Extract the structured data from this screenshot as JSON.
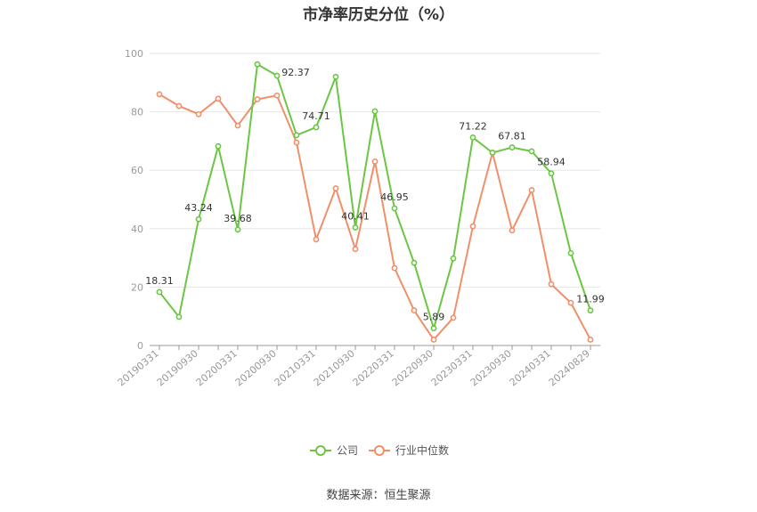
{
  "chart_data": {
    "type": "line",
    "title": "市净率历史分位（%）",
    "source": "数据来源：恒生聚源",
    "ylim": [
      0,
      100
    ],
    "yticks": [
      0,
      20,
      40,
      60,
      80,
      100
    ],
    "x": [
      "20190331",
      "20190630",
      "20190930",
      "20191231",
      "20200331",
      "20200630",
      "20200930",
      "20201231",
      "20210331",
      "20210630",
      "20210930",
      "20211231",
      "20220331",
      "20220630",
      "20220930",
      "20221231",
      "20230331",
      "20230630",
      "20230930",
      "20231231",
      "20240331",
      "20240630",
      "20240829"
    ],
    "x_tick_labels": [
      "20190331",
      "20190930",
      "20200331",
      "20200930",
      "20210331",
      "20210930",
      "20220331",
      "20220930",
      "20230331",
      "20230930",
      "20240331",
      "20240829"
    ],
    "grid": true,
    "legend_position": "bottom",
    "series": [
      {
        "name": "公司",
        "color": "#6cc644",
        "values": [
          18.31,
          9.8,
          43.24,
          68.2,
          39.68,
          96.3,
          92.37,
          72.0,
          74.71,
          92.0,
          40.41,
          80.2,
          46.95,
          28.3,
          5.89,
          29.8,
          71.22,
          66.0,
          67.81,
          66.5,
          58.94,
          31.6,
          11.99
        ],
        "labels": {
          "0": "18.31",
          "2": "43.24",
          "4": "39.68",
          "6": "92.37",
          "8": "74.71",
          "10": "40.41",
          "12": "46.95",
          "14": "5.89",
          "16": "71.22",
          "18": "67.81",
          "20": "58.94",
          "22": "11.99"
        }
      },
      {
        "name": "行业中位数",
        "color": "#f0906a",
        "values": [
          86.0,
          82.0,
          79.2,
          84.5,
          75.3,
          84.3,
          85.6,
          69.5,
          36.3,
          53.8,
          33.0,
          63.0,
          26.5,
          12.0,
          2.0,
          9.5,
          40.8,
          66.0,
          39.4,
          53.2,
          21.0,
          14.6,
          2.0
        ]
      }
    ]
  }
}
